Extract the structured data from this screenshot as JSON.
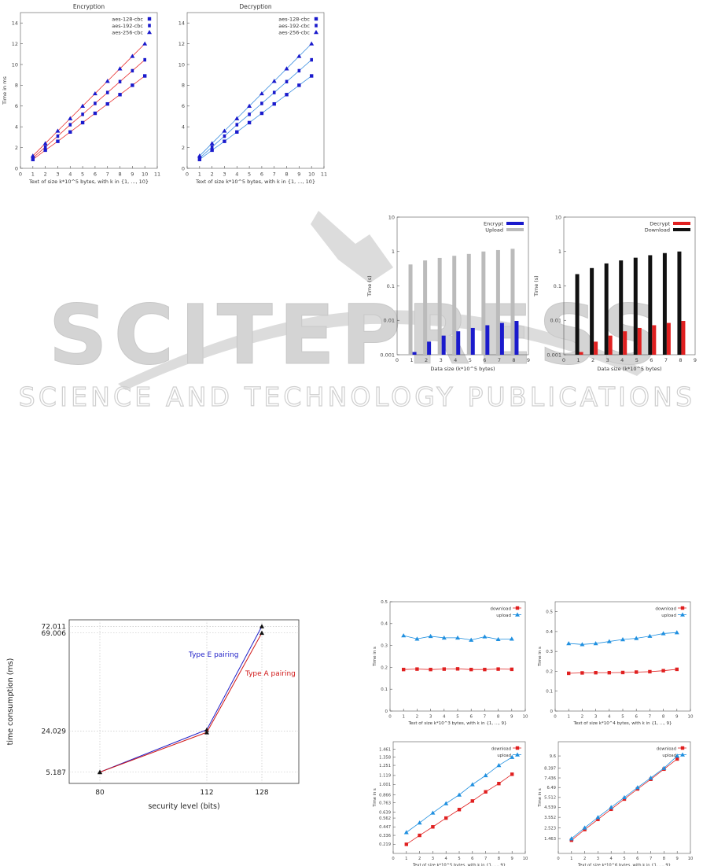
{
  "watermark": {
    "logo_text": "SCITEPRESS",
    "tagline": "SCIENCE AND TECHNOLOGY PUBLICATIONS",
    "color": "#d4d4d4"
  },
  "chart_data": [
    {
      "id": "encryption",
      "type": "line",
      "title": "Encryption",
      "xlabel": "Text of size k*10^5 bytes, with k in {1, ..., 10}",
      "ylabel": "Time in ms",
      "xlim": [
        0,
        11
      ],
      "ylim": [
        0,
        15
      ],
      "xticks": [
        "0",
        "1",
        "2",
        "3",
        "4",
        "5",
        "6",
        "7",
        "8",
        "9",
        "10",
        "11"
      ],
      "yticks": [
        "0",
        "2",
        "4",
        "6",
        "8",
        "10",
        "12",
        "14"
      ],
      "legend": "top-right",
      "grid": false,
      "x": [
        1,
        2,
        3,
        4,
        5,
        6,
        7,
        8,
        9,
        10
      ],
      "series": [
        {
          "name": "aes-128-cbc",
          "marker": "square",
          "color": "#1a1acc",
          "line_color": "#e83030",
          "values": [
            0.85,
            1.75,
            2.6,
            3.5,
            4.4,
            5.3,
            6.2,
            7.1,
            8.0,
            8.9
          ]
        },
        {
          "name": "aes-192-cbc",
          "marker": "square-small",
          "color": "#1a1acc",
          "line_color": "#e83030",
          "values": [
            1.0,
            2.05,
            3.1,
            4.2,
            5.2,
            6.25,
            7.3,
            8.35,
            9.4,
            10.45
          ]
        },
        {
          "name": "aes-256-cbc",
          "marker": "triangle",
          "color": "#1a1acc",
          "line_color": "#e83030",
          "values": [
            1.2,
            2.4,
            3.6,
            4.8,
            6.0,
            7.2,
            8.4,
            9.6,
            10.8,
            12.0
          ]
        }
      ]
    },
    {
      "id": "decryption",
      "type": "line",
      "title": "Decryption",
      "xlabel": "Text of size k*10^5 bytes, with k in {1, ..., 10}",
      "ylabel": "",
      "xlim": [
        0,
        11
      ],
      "ylim": [
        0,
        15
      ],
      "xticks": [
        "0",
        "1",
        "2",
        "3",
        "4",
        "5",
        "6",
        "7",
        "8",
        "9",
        "10",
        "11"
      ],
      "yticks": [
        "0",
        "2",
        "4",
        "6",
        "8",
        "10",
        "12",
        "14"
      ],
      "legend": "top-right",
      "grid": false,
      "x": [
        1,
        2,
        3,
        4,
        5,
        6,
        7,
        8,
        9,
        10
      ],
      "series": [
        {
          "name": "aes-128-cbc",
          "marker": "square",
          "color": "#1a1acc",
          "line_color": "#3d8fe0",
          "values": [
            0.85,
            1.75,
            2.6,
            3.5,
            4.4,
            5.3,
            6.2,
            7.1,
            8.0,
            8.9
          ]
        },
        {
          "name": "aes-192-cbc",
          "marker": "square-small",
          "color": "#1a1acc",
          "line_color": "#3d8fe0",
          "values": [
            1.0,
            2.05,
            3.1,
            4.2,
            5.2,
            6.25,
            7.3,
            8.35,
            9.4,
            10.45
          ]
        },
        {
          "name": "aes-256-cbc",
          "marker": "triangle",
          "color": "#1a1acc",
          "line_color": "#3d8fe0",
          "values": [
            1.2,
            2.4,
            3.6,
            4.8,
            6.0,
            7.2,
            8.4,
            9.6,
            10.8,
            12.0
          ]
        }
      ]
    },
    {
      "id": "encrypt-upload",
      "type": "bar",
      "title": "",
      "xlabel": "Data size (k*10^5 bytes)",
      "ylabel": "Time (s)",
      "scale_y": "log",
      "xlim": [
        0,
        9
      ],
      "ylim": [
        0.001,
        10
      ],
      "xticks": [
        "0",
        "1",
        "2",
        "3",
        "4",
        "5",
        "6",
        "7",
        "8",
        "9"
      ],
      "yticks": [
        "0.001",
        "0.01",
        "0.1",
        "1",
        "10"
      ],
      "legend": "top-right",
      "grid": false,
      "categories": [
        1,
        2,
        3,
        4,
        5,
        6,
        7,
        8
      ],
      "series": [
        {
          "name": "Encrypt",
          "color": "#1a1acc",
          "values": [
            0.0012,
            0.0024,
            0.0036,
            0.0048,
            0.006,
            0.0072,
            0.0084,
            0.0096
          ]
        },
        {
          "name": "Upload",
          "color": "#bbbbbb",
          "values": [
            0.42,
            0.55,
            0.65,
            0.75,
            0.85,
            1.0,
            1.1,
            1.2
          ]
        }
      ]
    },
    {
      "id": "decrypt-download",
      "type": "bar",
      "title": "",
      "xlabel": "Data size (k*10^5 bytes)",
      "ylabel": "Time (s)",
      "scale_y": "log",
      "xlim": [
        0,
        9
      ],
      "ylim": [
        0.001,
        10
      ],
      "xticks": [
        "0",
        "1",
        "2",
        "3",
        "4",
        "5",
        "6",
        "7",
        "8",
        "9"
      ],
      "yticks": [
        "0.001",
        "0.01",
        "0.1",
        "1",
        "10"
      ],
      "legend": "top-right",
      "grid": false,
      "categories": [
        1,
        2,
        3,
        4,
        5,
        6,
        7,
        8
      ],
      "series": [
        {
          "name": "Decrypt",
          "color": "#e02020",
          "values": [
            0.0012,
            0.0024,
            0.0036,
            0.0048,
            0.006,
            0.0072,
            0.0084,
            0.0096
          ]
        },
        {
          "name": "Download",
          "color": "#111111",
          "values": [
            0.22,
            0.33,
            0.45,
            0.55,
            0.66,
            0.78,
            0.9,
            1.0
          ]
        }
      ]
    },
    {
      "id": "pairing",
      "type": "line",
      "title": "",
      "xlabel": "security level (bits)",
      "ylabel": "time consumption (ms)",
      "categories": [
        "80",
        "112",
        "128"
      ],
      "yticks": [
        "5.187",
        "24.029",
        "69.006",
        "72.011"
      ],
      "ylim": [
        0,
        75
      ],
      "grid": true,
      "series": [
        {
          "name": "Type E pairing",
          "color": "#2020c8",
          "values": [
            5.187,
            24.6,
            72.011
          ]
        },
        {
          "name": "Type A pairing",
          "color": "#d01818",
          "values": [
            5.187,
            23.4,
            69.006
          ]
        }
      ]
    },
    {
      "id": "size-1e3",
      "type": "scatter",
      "title": "",
      "xlabel": "Text of size k*10^3 bytes, with k in {1, ..., 9}",
      "ylabel": "Time in s",
      "xlim": [
        0,
        10
      ],
      "ylim": [
        0,
        0.5
      ],
      "xticks": [
        "0",
        "1",
        "2",
        "3",
        "4",
        "5",
        "6",
        "7",
        "8",
        "9",
        "10"
      ],
      "yticks": [
        "0",
        "0.1",
        "0.2",
        "0.3",
        "0.4",
        "0.5"
      ],
      "legend": "top-right",
      "grid": false,
      "x": [
        1,
        2,
        3,
        4,
        5,
        6,
        7,
        8,
        9
      ],
      "series": [
        {
          "name": "download",
          "color": "#e02020",
          "marker": "square",
          "values": [
            0.19,
            0.192,
            0.19,
            0.192,
            0.193,
            0.19,
            0.19,
            0.192,
            0.191
          ]
        },
        {
          "name": "upload",
          "color": "#2090e0",
          "marker": "triangle",
          "values": [
            0.345,
            0.33,
            0.342,
            0.335,
            0.335,
            0.325,
            0.34,
            0.328,
            0.33
          ]
        }
      ]
    },
    {
      "id": "size-1e4",
      "type": "scatter",
      "title": "",
      "xlabel": "Text of size k*10^4 bytes, with k in {1, ..., 9}",
      "ylabel": "Time in s",
      "xlim": [
        0,
        10
      ],
      "ylim": [
        0,
        0.55
      ],
      "xticks": [
        "0",
        "1",
        "2",
        "3",
        "4",
        "5",
        "6",
        "7",
        "8",
        "9",
        "10"
      ],
      "yticks": [
        "0",
        "0.1",
        "0.2",
        "0.3",
        "0.4",
        "0.5"
      ],
      "legend": "top-right",
      "grid": false,
      "x": [
        1,
        2,
        3,
        4,
        5,
        6,
        7,
        8,
        9
      ],
      "series": [
        {
          "name": "download",
          "color": "#e02020",
          "marker": "square",
          "values": [
            0.19,
            0.192,
            0.193,
            0.193,
            0.194,
            0.196,
            0.198,
            0.203,
            0.21
          ]
        },
        {
          "name": "upload",
          "color": "#2090e0",
          "marker": "triangle",
          "values": [
            0.34,
            0.335,
            0.34,
            0.35,
            0.36,
            0.366,
            0.377,
            0.39,
            0.395
          ]
        }
      ]
    },
    {
      "id": "size-1e5",
      "type": "scatter",
      "title": "",
      "xlabel": "Text of size k*10^5 bytes, with k in {1, ..., 9}",
      "ylabel": "Time in s",
      "xlim": [
        0,
        10
      ],
      "ylim": [
        0.1,
        1.56
      ],
      "xticks": [
        "0",
        "1",
        "2",
        "3",
        "4",
        "5",
        "6",
        "7",
        "8",
        "9",
        "10"
      ],
      "yticks": [
        "0.219",
        "0.336",
        "0.447",
        "0.562",
        "0.639",
        "0.763",
        "0.866",
        "1.001",
        "1.119",
        "1.251",
        "1.358",
        "1.461"
      ],
      "legend": "top-right",
      "grid": false,
      "x": [
        1,
        2,
        3,
        4,
        5,
        6,
        7,
        8,
        9
      ],
      "series": [
        {
          "name": "download",
          "color": "#e02020",
          "marker": "square",
          "values": [
            0.219,
            0.336,
            0.447,
            0.562,
            0.673,
            0.785,
            0.905,
            1.013,
            1.135
          ]
        },
        {
          "name": "upload",
          "color": "#2090e0",
          "marker": "triangle",
          "values": [
            0.375,
            0.5,
            0.63,
            0.753,
            0.866,
            1.001,
            1.119,
            1.251,
            1.358
          ]
        }
      ]
    },
    {
      "id": "size-1e6",
      "type": "scatter",
      "title": "",
      "xlabel": "Text of size k*10^6 bytes, with k in {1, ..., 9}",
      "ylabel": "Time in s",
      "xlim": [
        0,
        10
      ],
      "ylim": [
        0,
        11
      ],
      "xticks": [
        "0",
        "1",
        "2",
        "3",
        "4",
        "5",
        "6",
        "7",
        "8",
        "9",
        "10"
      ],
      "yticks": [
        "1.463",
        "2.523",
        "3.552",
        "4.539",
        "5.512",
        "6.49",
        "7.436",
        "8.397",
        "9.6"
      ],
      "legend": "top-right",
      "grid": false,
      "x": [
        1,
        2,
        3,
        4,
        5,
        6,
        7,
        8,
        9
      ],
      "series": [
        {
          "name": "download",
          "color": "#e02020",
          "marker": "square",
          "values": [
            1.3,
            2.35,
            3.35,
            4.35,
            5.35,
            6.35,
            7.3,
            8.3,
            9.3
          ]
        },
        {
          "name": "upload",
          "color": "#2090e0",
          "marker": "triangle",
          "values": [
            1.463,
            2.523,
            3.552,
            4.539,
            5.512,
            6.49,
            7.436,
            8.397,
            9.6
          ]
        }
      ]
    }
  ]
}
